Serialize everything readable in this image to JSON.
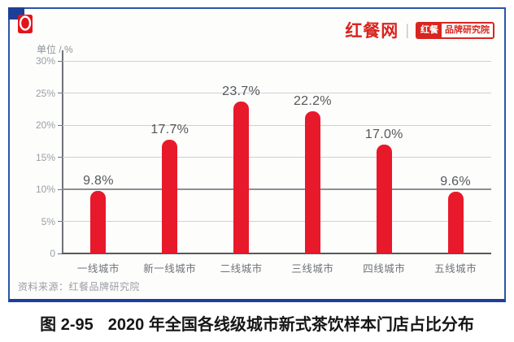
{
  "header": {
    "brand_name": "红餐网",
    "separator": "|",
    "badge_left": "红餐",
    "badge_right": "品牌研究院"
  },
  "chart_data": {
    "type": "bar",
    "unit_label": "单位 / %",
    "categories": [
      "一线城市",
      "新一线城市",
      "二线城市",
      "三线城市",
      "四线城市",
      "五线城市"
    ],
    "values": [
      9.8,
      17.7,
      23.7,
      22.2,
      17.0,
      9.6
    ],
    "value_labels": [
      "9.8%",
      "17.7%",
      "23.7%",
      "22.2%",
      "17.0%",
      "9.6%"
    ],
    "ylim": [
      0,
      30
    ],
    "yticks": [
      0,
      5,
      10,
      15,
      20,
      25,
      30
    ],
    "ytick_labels": [
      "0",
      "5%",
      "10%",
      "15%",
      "20%",
      "25%",
      "30%"
    ],
    "grid": true,
    "emphasized_gridline": 10,
    "legend": "none",
    "bar_color": "#e8192b"
  },
  "source_note": "资料来源：红餐品牌研究院",
  "caption": {
    "figure_no": "图 2-95",
    "title": "2020 年全国各线级城市新式茶饮样本门店占比分布"
  },
  "colors": {
    "brand_red": "#d9251f",
    "bar_red": "#e8192b",
    "border_blue": "#2b55a7",
    "corner_blue": "#1d3f97"
  }
}
